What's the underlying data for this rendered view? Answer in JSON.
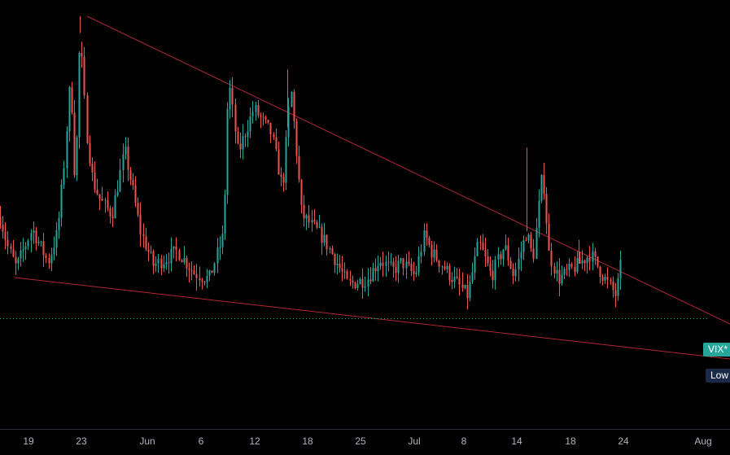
{
  "colors": {
    "background": "#000000",
    "up": "#26a69a",
    "down": "#ef5350",
    "trendline": "#b22833",
    "price_line": "#26a69a",
    "axis_text": "#b2b5be",
    "axis_border": "#2a2e39",
    "low_tag_bg": "#1c2a4a"
  },
  "price_tags": {
    "current_label": "VIX*",
    "low_label": "Low"
  },
  "chart_data": {
    "type": "candlestick",
    "x_axis": {
      "ticks": [
        "19",
        "23",
        "Jun",
        "6",
        "12",
        "18",
        "25",
        "Jul",
        "8",
        "14",
        "18",
        "24",
        "Aug"
      ]
    },
    "ylim": [
      11.5,
      23.5
    ],
    "grid": false,
    "current_level": 12.7,
    "anchors": [
      [
        0.0,
        16.3
      ],
      [
        0.5,
        15.2
      ],
      [
        1.0,
        14.5
      ],
      [
        2.0,
        15.9
      ],
      [
        3.0,
        14.7
      ],
      [
        3.6,
        15.8
      ],
      [
        4.0,
        18.2
      ],
      [
        4.4,
        21.4
      ],
      [
        4.7,
        17.2
      ],
      [
        5.0,
        22.9
      ],
      [
        5.4,
        19.4
      ],
      [
        5.8,
        17.6
      ],
      [
        6.3,
        16.9
      ],
      [
        7.0,
        16.4
      ],
      [
        7.8,
        18.7
      ],
      [
        8.3,
        17.3
      ],
      [
        8.8,
        15.8
      ],
      [
        9.6,
        14.6
      ],
      [
        10.3,
        14.8
      ],
      [
        11.1,
        15.1
      ],
      [
        12.2,
        14.3
      ],
      [
        13.1,
        14.1
      ],
      [
        14.0,
        15.7
      ],
      [
        14.3,
        21.3
      ],
      [
        14.9,
        18.6
      ],
      [
        15.9,
        20.2
      ],
      [
        17.0,
        19.3
      ],
      [
        17.7,
        17.3
      ],
      [
        18.2,
        21.0
      ],
      [
        18.9,
        16.4
      ],
      [
        20.2,
        15.6
      ],
      [
        21.0,
        14.8
      ],
      [
        21.8,
        13.9
      ],
      [
        23.0,
        14.1
      ],
      [
        23.8,
        14.8
      ],
      [
        24.6,
        14.4
      ],
      [
        25.2,
        14.7
      ],
      [
        26.0,
        14.2
      ],
      [
        26.6,
        15.7
      ],
      [
        27.0,
        15.1
      ],
      [
        28.4,
        14.1
      ],
      [
        29.3,
        13.5
      ],
      [
        30.0,
        15.4
      ],
      [
        30.8,
        14.2
      ],
      [
        31.6,
        15.3
      ],
      [
        32.2,
        14.2
      ],
      [
        33.0,
        15.8
      ],
      [
        33.4,
        14.8
      ],
      [
        34.0,
        18.0
      ],
      [
        34.4,
        15.0
      ],
      [
        35.0,
        14.1
      ],
      [
        36.2,
        14.6
      ],
      [
        37.0,
        15.0
      ],
      [
        37.8,
        14.2
      ],
      [
        38.6,
        13.5
      ],
      [
        38.9,
        14.6
      ]
    ],
    "wick_spikes": [
      [
        5.0,
        23.5
      ],
      [
        18.0,
        21.6
      ],
      [
        33.0,
        18.8
      ],
      [
        36.3,
        15.5
      ]
    ]
  }
}
